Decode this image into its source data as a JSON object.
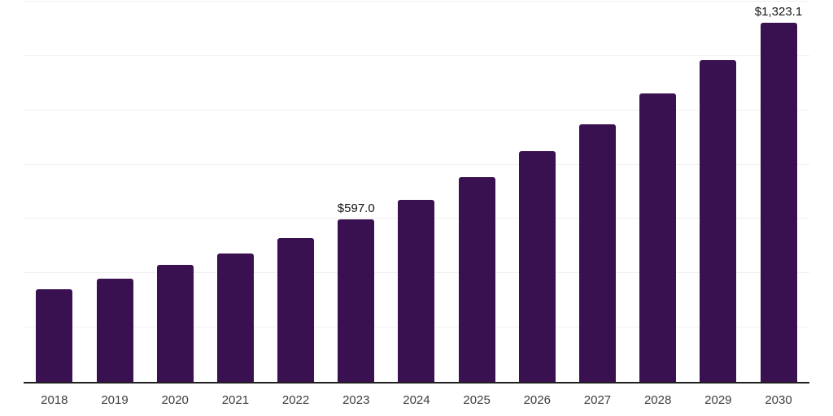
{
  "chart_data": {
    "type": "bar",
    "title": "",
    "xlabel": "",
    "ylabel": "",
    "categories": [
      "2018",
      "2019",
      "2020",
      "2021",
      "2022",
      "2023",
      "2024",
      "2025",
      "2026",
      "2027",
      "2028",
      "2029",
      "2030"
    ],
    "values": [
      340,
      381,
      432,
      472,
      529,
      597.0,
      671,
      755,
      849,
      948,
      1062,
      1185,
      1323.1
    ],
    "value_labels": {
      "2023": "$597.0",
      "2030": "$1,323.1"
    },
    "ylim": [
      0,
      1400
    ],
    "grid_step": 200,
    "grid": "horizontal-only",
    "legend_position": "none",
    "colors": {
      "bar": "#3a1150",
      "axis_line": "#1f1f1f",
      "gridline": "#f0f0f0",
      "tick_label": "#3d3d3d",
      "data_label": "#141414",
      "background": "#ffffff"
    }
  }
}
